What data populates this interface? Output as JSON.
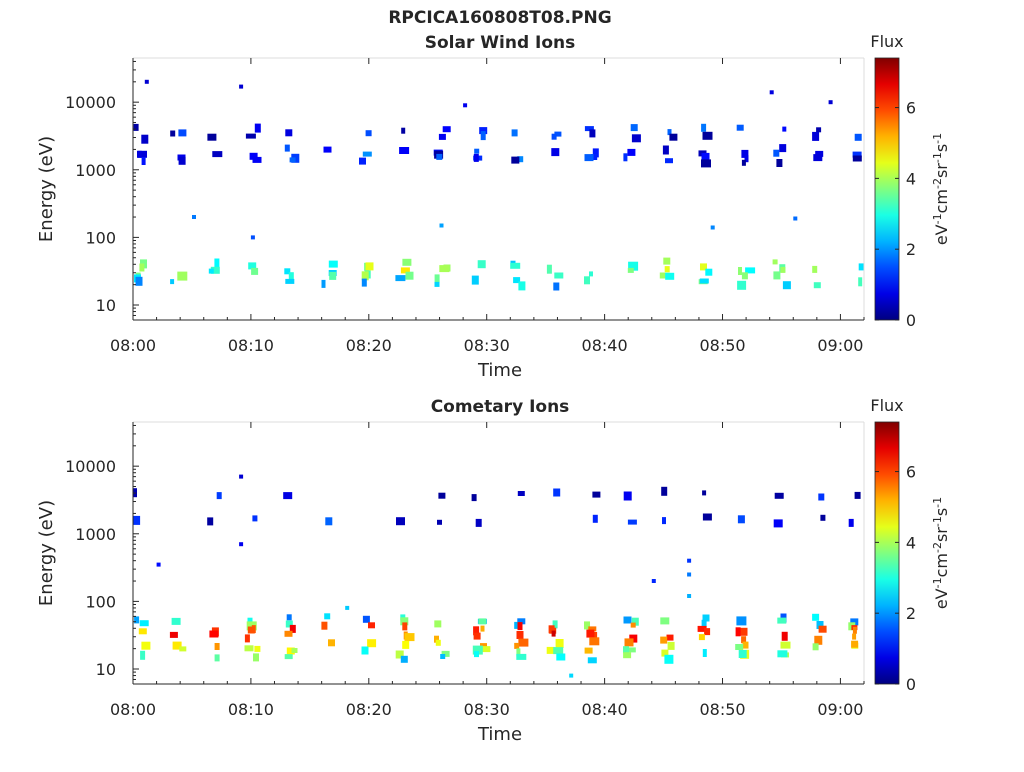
{
  "figure_title": "RPCICA160808T08.PNG",
  "chart_data": [
    {
      "type": "heatmap",
      "title": "Solar Wind Ions",
      "xlabel": "Time",
      "ylabel": "Energy (eV)",
      "x_ticks": [
        "08:00",
        "08:10",
        "08:20",
        "08:30",
        "08:40",
        "08:50",
        "09:00"
      ],
      "xlim": [
        "08:00",
        "09:02"
      ],
      "y_ticks": [
        "10",
        "100",
        "1000",
        "10000"
      ],
      "ylim": [
        6,
        45000
      ],
      "yscale": "log",
      "colorbar": {
        "title": "Flux",
        "label": "eV-1cm-2sr-1s-1",
        "ticks": [
          "0",
          "2",
          "4",
          "6"
        ],
        "range": [
          0,
          7.4
        ],
        "colormap": "jet"
      },
      "sweep_period_min": 3.2,
      "bands": [
        {
          "energy": 3800,
          "flux": 1.0
        },
        {
          "energy": 3200,
          "flux": 0.8
        },
        {
          "energy": 1900,
          "flux": 1.4
        },
        {
          "energy": 1600,
          "flux": 1.1
        },
        {
          "energy": 1400,
          "flux": 0.7
        },
        {
          "energy": 40,
          "flux": 3.0
        },
        {
          "energy": 34,
          "flux": 3.8
        },
        {
          "energy": 30,
          "flux": 3.4
        },
        {
          "energy": 25,
          "flux": 3.1
        },
        {
          "energy": 21,
          "flux": 2.6
        }
      ],
      "scatter": [
        {
          "time": "08:01",
          "energy": 20000,
          "flux": 0.6
        },
        {
          "time": "08:09",
          "energy": 17000,
          "flux": 0.6
        },
        {
          "time": "08:28",
          "energy": 9000,
          "flux": 0.8
        },
        {
          "time": "08:54",
          "energy": 14000,
          "flux": 0.7
        },
        {
          "time": "08:59",
          "energy": 10000,
          "flux": 0.6
        },
        {
          "time": "08:05",
          "energy": 200,
          "flux": 1.8
        },
        {
          "time": "08:10",
          "energy": 100,
          "flux": 1.5
        },
        {
          "time": "08:26",
          "energy": 150,
          "flux": 2.1
        },
        {
          "time": "08:49",
          "energy": 140,
          "flux": 1.9
        },
        {
          "time": "08:56",
          "energy": 190,
          "flux": 1.7
        }
      ]
    },
    {
      "type": "heatmap",
      "title": "Cometary Ions",
      "xlabel": "Time",
      "ylabel": "Energy (eV)",
      "x_ticks": [
        "08:00",
        "08:10",
        "08:20",
        "08:30",
        "08:40",
        "08:50",
        "09:00"
      ],
      "xlim": [
        "08:00",
        "09:02"
      ],
      "y_ticks": [
        "10",
        "100",
        "1000",
        "10000"
      ],
      "ylim": [
        6,
        45000
      ],
      "yscale": "log",
      "colorbar": {
        "title": "Flux",
        "label": "eV-1cm-2sr-1s-1",
        "ticks": [
          "0",
          "2",
          "4",
          "6"
        ],
        "range": [
          0,
          7.4
        ],
        "colormap": "jet"
      },
      "sweep_period_min": 3.2,
      "bands": [
        {
          "energy": 3800,
          "flux": 0.6
        },
        {
          "energy": 1600,
          "flux": 0.7
        },
        {
          "energy": 55,
          "flux": 2.4
        },
        {
          "energy": 47,
          "flux": 3.2
        },
        {
          "energy": 40,
          "flux": 5.6
        },
        {
          "energy": 34,
          "flux": 6.3
        },
        {
          "energy": 30,
          "flux": 5.9
        },
        {
          "energy": 25,
          "flux": 5.2
        },
        {
          "energy": 21,
          "flux": 4.6
        },
        {
          "energy": 18,
          "flux": 3.6
        },
        {
          "energy": 15,
          "flux": 3.0
        }
      ],
      "scatter": [
        {
          "time": "08:09",
          "energy": 7000,
          "flux": 0.6
        },
        {
          "time": "08:09",
          "energy": 700,
          "flux": 0.8
        },
        {
          "time": "08:02",
          "energy": 350,
          "flux": 1.0
        },
        {
          "time": "08:47",
          "energy": 400,
          "flux": 1.3
        },
        {
          "time": "08:47",
          "energy": 250,
          "flux": 1.8
        },
        {
          "time": "08:47",
          "energy": 120,
          "flux": 2.2
        },
        {
          "time": "08:44",
          "energy": 200,
          "flux": 1.2
        },
        {
          "time": "08:18",
          "energy": 80,
          "flux": 2.4
        },
        {
          "time": "08:37",
          "energy": 8,
          "flux": 2.5
        }
      ]
    }
  ]
}
